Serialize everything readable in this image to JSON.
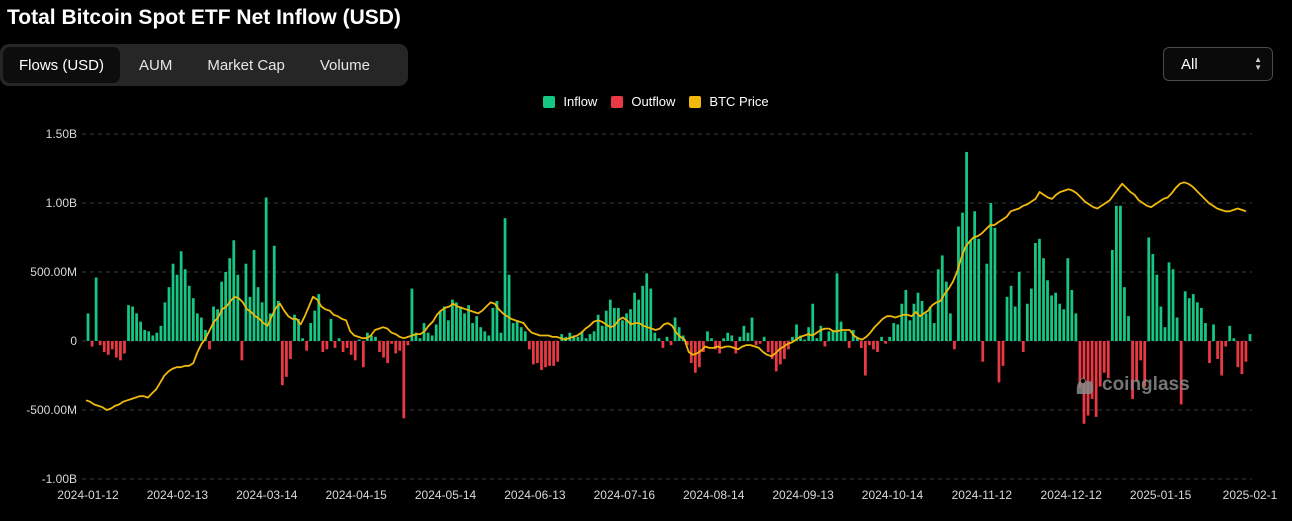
{
  "header": {
    "title": "Total Bitcoin Spot ETF Net Inflow (USD)"
  },
  "tabs": [
    {
      "label": "Flows (USD)",
      "active": true
    },
    {
      "label": "AUM",
      "active": false
    },
    {
      "label": "Market Cap",
      "active": false
    },
    {
      "label": "Volume",
      "active": false
    }
  ],
  "range_select": {
    "value": "All",
    "icon": "chevron-updown-icon"
  },
  "watermark": {
    "text": "coinglass",
    "icon": "coinglass-logo-icon"
  },
  "colors": {
    "inflow": "#16c784",
    "outflow": "#ea3943",
    "price": "#f0b90b",
    "grid": "#3a3a3a"
  },
  "chart_data": {
    "type": "bar",
    "legend": [
      "Inflow",
      "Outflow",
      "BTC Price"
    ],
    "legend_position": "top-center",
    "y_ticks": [
      "1.50B",
      "1.00B",
      "500.00M",
      "0",
      "-500.00M",
      "-1.00B"
    ],
    "y_tick_values": [
      1500,
      1000,
      500,
      0,
      -500,
      -1000
    ],
    "ylim_musd": [
      -1000,
      1500
    ],
    "x_ticks": [
      "2024-01-12",
      "2024-02-13",
      "2024-03-14",
      "2024-04-15",
      "2024-05-14",
      "2024-06-13",
      "2024-07-16",
      "2024-08-14",
      "2024-09-13",
      "2024-10-14",
      "2024-11-12",
      "2024-12-12",
      "2025-01-15",
      "2025-02-1"
    ],
    "grid": "horizontal dashed",
    "net_flow_musd": [
      200,
      -40,
      460,
      -30,
      -80,
      -100,
      -60,
      -120,
      -140,
      -90,
      260,
      250,
      200,
      140,
      80,
      70,
      40,
      60,
      110,
      280,
      390,
      560,
      480,
      650,
      520,
      400,
      310,
      200,
      170,
      80,
      -60,
      250,
      230,
      430,
      500,
      600,
      730,
      480,
      -140,
      560,
      320,
      660,
      390,
      280,
      1040,
      200,
      690,
      290,
      -320,
      -260,
      -130,
      190,
      160,
      20,
      -70,
      130,
      220,
      340,
      -80,
      -60,
      160,
      -50,
      20,
      -80,
      -50,
      -100,
      -140,
      10,
      -190,
      60,
      40,
      30,
      -80,
      -120,
      -160,
      -20,
      -90,
      -70,
      -560,
      -30,
      380,
      60,
      20,
      130,
      60,
      40,
      120,
      220,
      250,
      150,
      300,
      280,
      250,
      200,
      260,
      130,
      180,
      100,
      70,
      40,
      240,
      290,
      60,
      890,
      480,
      130,
      150,
      100,
      70,
      -60,
      -170,
      -160,
      -210,
      -190,
      -180,
      -180,
      -150,
      50,
      30,
      60,
      40,
      30,
      70,
      20,
      50,
      70,
      190,
      110,
      220,
      300,
      240,
      240,
      150,
      200,
      230,
      350,
      300,
      400,
      490,
      380,
      60,
      20,
      -50,
      30,
      -30,
      170,
      100,
      40,
      -30,
      -160,
      -230,
      -190,
      -80,
      70,
      20,
      -60,
      -90,
      20,
      60,
      40,
      -90,
      30,
      110,
      60,
      170,
      -30,
      -20,
      30,
      -80,
      -130,
      -220,
      -170,
      -130,
      -60,
      30,
      120,
      40,
      10,
      100,
      270,
      20,
      110,
      -40,
      70,
      80,
      490,
      140,
      70,
      -50,
      80,
      20,
      -50,
      -250,
      -30,
      -60,
      -80,
      30,
      -20,
      30,
      130,
      120,
      270,
      370,
      150,
      270,
      350,
      290,
      200,
      250,
      130,
      520,
      620,
      430,
      200,
      -60,
      830,
      930,
      1370,
      730,
      940,
      740,
      -150,
      560,
      1000,
      820,
      -300,
      -180,
      320,
      400,
      250,
      500,
      -80,
      270,
      380,
      710,
      740,
      600,
      440,
      330,
      350,
      270,
      230,
      600,
      370,
      200,
      -340,
      -600,
      -540,
      -420,
      -550,
      -330,
      -230,
      -270,
      660,
      980,
      980,
      390,
      180,
      -420,
      -290,
      -140,
      -330,
      750,
      630,
      480,
      250,
      100,
      570,
      520,
      170,
      -460,
      360,
      310,
      340,
      280,
      240,
      130,
      -160,
      120,
      -130,
      -250,
      -40,
      110,
      20,
      -190,
      -240,
      -150,
      50
    ],
    "btc_price_musd": [
      -430,
      -440,
      -460,
      -470,
      -480,
      -500,
      -490,
      -470,
      -460,
      -440,
      -430,
      -420,
      -410,
      -400,
      -400,
      -410,
      -380,
      -350,
      -300,
      -250,
      -220,
      -200,
      -190,
      -190,
      -180,
      -180,
      -160,
      -80,
      -20,
      20,
      80,
      140,
      170,
      230,
      250,
      290,
      320,
      310,
      280,
      230,
      210,
      180,
      160,
      130,
      110,
      180,
      240,
      270,
      220,
      180,
      160,
      160,
      120,
      180,
      250,
      320,
      300,
      250,
      230,
      220,
      190,
      180,
      160,
      150,
      70,
      40,
      30,
      20,
      20,
      40,
      80,
      90,
      100,
      90,
      60,
      50,
      30,
      20,
      30,
      40,
      50,
      50,
      70,
      110,
      140,
      190,
      220,
      240,
      250,
      270,
      250,
      240,
      230,
      220,
      210,
      200,
      220,
      250,
      280,
      270,
      230,
      200,
      180,
      160,
      150,
      140,
      130,
      90,
      60,
      50,
      40,
      40,
      40,
      30,
      30,
      20,
      10,
      20,
      30,
      40,
      60,
      90,
      110,
      140,
      150,
      140,
      120,
      100,
      110,
      150,
      170,
      150,
      120,
      130,
      130,
      110,
      100,
      90,
      80,
      90,
      120,
      130,
      110,
      60,
      30,
      10,
      -80,
      -100,
      -90,
      -70,
      -40,
      -50,
      -50,
      -40,
      -50,
      -40,
      -40,
      -50,
      -60,
      -40,
      -30,
      -30,
      -40,
      -50,
      -80,
      -100,
      -110,
      -90,
      -60,
      -40,
      -20,
      -10,
      10,
      30,
      40,
      50,
      40,
      60,
      80,
      90,
      90,
      70,
      70,
      80,
      80,
      80,
      40,
      20,
      10,
      30,
      60,
      100,
      130,
      160,
      180,
      180,
      170,
      180,
      190,
      190,
      180,
      210,
      180,
      200,
      220,
      260,
      280,
      290,
      340,
      380,
      430,
      500,
      600,
      680,
      720,
      750,
      760,
      780,
      810,
      840,
      840,
      860,
      880,
      900,
      940,
      950,
      960,
      980,
      990,
      1010,
      1030,
      1080,
      1060,
      1040,
      1030,
      1060,
      1080,
      1090,
      1100,
      1090,
      1070,
      1040,
      1010,
      990,
      970,
      960,
      980,
      1000,
      1020,
      1060,
      1100,
      1140,
      1110,
      1080,
      1060,
      1020,
      1000,
      980,
      970,
      990,
      1010,
      1030,
      1040,
      1070,
      1110,
      1140,
      1150,
      1140,
      1120,
      1090,
      1060,
      1030,
      1000,
      980,
      960,
      950,
      940,
      940,
      950,
      960,
      950,
      940
    ]
  }
}
